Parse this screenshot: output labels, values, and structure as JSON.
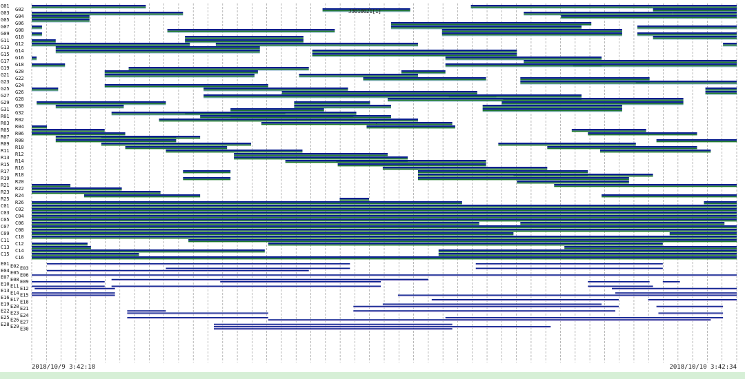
{
  "chart_data": {
    "type": "gantt",
    "start_label": "2018/10/9 3:42:18",
    "end_label": "2018/10/10 3:42:34",
    "start_clock": "03:42",
    "grid": true,
    "grid_interval_minutes": 30,
    "marker_label": "J3010021[1]",
    "colors": {
      "primary": "#0a1f8f",
      "secondary": "#1e7a2a",
      "tertiary": "#8fb3d9",
      "lavender": "#c9b8e0",
      "footer": "#d6efd6"
    },
    "groups": [
      {
        "name": "G",
        "rows": [
          {
            "label": "G01",
            "segs": [
              "03:42-07:35",
              "18:39-00:51",
              "00:51-03:42"
            ]
          },
          {
            "label": "G02",
            "segs": [
              "13:36-16:35",
              "00:51-03:42"
            ]
          },
          {
            "label": "G03",
            "segs": [
              "03:42-08:51",
              "20:27-01:32",
              "01:32-03:42"
            ]
          },
          {
            "label": "G04",
            "segs": [
              "03:42-05:40",
              "21:43-03:42"
            ]
          },
          {
            "label": "G05",
            "segs": [
              "03:42-05:40"
            ]
          },
          {
            "label": "G06",
            "segs": [
              "15:56-22:45"
            ]
          },
          {
            "label": "G07",
            "segs": [
              "03:42-04:03",
              "15:56-22:25",
              "00:19-03:42"
            ]
          },
          {
            "label": "G08",
            "segs": [
              "08:19-14:01",
              "17:40-23:48"
            ]
          },
          {
            "label": "G09",
            "segs": [
              "03:42-04:03",
              "17:40-23:48",
              "00:19-03:42"
            ]
          },
          {
            "label": "G10",
            "segs": [
              "08:55-12:57",
              "00:51-03:42"
            ]
          },
          {
            "label": "G11",
            "segs": [
              "03:42-04:31",
              "08:55-12:57"
            ]
          },
          {
            "label": "G12",
            "segs": [
              "03:42-09:05",
              "09:58-16:51",
              "03:14-03:42"
            ]
          },
          {
            "label": "G13",
            "segs": [
              "04:31-11:28"
            ]
          },
          {
            "label": "G14",
            "segs": [
              "04:31-11:28",
              "13:15-20:13"
            ]
          },
          {
            "label": "G15",
            "segs": [
              "13:15-20:13"
            ]
          },
          {
            "label": "G16",
            "segs": [
              "03:42-03:52",
              "17:47-23:06"
            ]
          },
          {
            "label": "G17",
            "segs": [
              "20:27-03:42"
            ]
          },
          {
            "label": "G18",
            "segs": [
              "03:42-04:50",
              "17:47-23:06",
              "22:08-03:42"
            ]
          },
          {
            "label": "G19",
            "segs": [
              "07:00-13:08"
            ]
          },
          {
            "label": "G20",
            "segs": [
              "06:11-11:24",
              "16:17-17:47"
            ]
          },
          {
            "label": "G21",
            "segs": [
              "06:11-11:17",
              "12:48-16:51"
            ]
          },
          {
            "label": "G22",
            "segs": [
              "14:59-19:10",
              "20:20-00:44"
            ]
          },
          {
            "label": "G23",
            "segs": [
              "20:20-00:44",
              "00:16-03:42"
            ]
          },
          {
            "label": "G24",
            "segs": [
              "06:11-11:45"
            ]
          },
          {
            "label": "G25",
            "segs": [
              "03:42-04:36",
              "09:33-14:28",
              "02:38-03:42"
            ]
          },
          {
            "label": "G26",
            "segs": [
              "12:13-18:52",
              "02:38-03:42"
            ]
          },
          {
            "label": "G27",
            "segs": [
              "09:33-19:31",
              "17:54-22:25"
            ]
          },
          {
            "label": "G28",
            "segs": [
              "15:49-22:25",
              "19:45-01:53"
            ]
          },
          {
            "label": "G29",
            "segs": [
              "03:52-08:16",
              "12:38-15:13",
              "19:42-01:53"
            ]
          },
          {
            "label": "G30",
            "segs": [
              "04:31-06:50",
              "12:38-15:56",
              "19:03-23:48"
            ]
          },
          {
            "label": "G31",
            "segs": [
              "10:28-13:39",
              "19:03-23:48"
            ]
          },
          {
            "label": "G32",
            "segs": [
              "06:25-12:20",
              "08:55-14:45"
            ]
          }
        ]
      },
      {
        "name": "R",
        "rows": [
          {
            "label": "R01",
            "segs": [
              "09:26-14:39",
              "10:28-15:56"
            ]
          },
          {
            "label": "R02",
            "segs": [
              "08:02-16:51"
            ]
          },
          {
            "label": "R03",
            "segs": [
              "11:31-15:27",
              "15:25-18:01"
            ]
          },
          {
            "label": "R04",
            "segs": [
              "03:42-04:13",
              "15:06-18:07"
            ]
          },
          {
            "label": "R05",
            "segs": [
              "03:42-06:11",
              "22:05-00:37"
            ]
          },
          {
            "label": "R06",
            "segs": [
              "03:42-06:53",
              "22:38-02:21"
            ]
          },
          {
            "label": "R07",
            "segs": [
              "04:31-08:37",
              "06:04-09:26"
            ]
          },
          {
            "label": "R08",
            "segs": [
              "04:31-08:37",
              "00:58-03:42"
            ]
          },
          {
            "label": "R09",
            "segs": [
              "06:04-11:10",
              "19:35-00:16"
            ]
          },
          {
            "label": "R10",
            "segs": [
              "06:53-10:21",
              "21:15-02:21"
            ]
          },
          {
            "label": "R11",
            "segs": [
              "08:16-12:55",
              "23:03-02:49"
            ]
          },
          {
            "label": "R12",
            "segs": [
              "10:35-15:49"
            ]
          },
          {
            "label": "R13",
            "segs": [
              "10:35-16:30"
            ]
          },
          {
            "label": "R14",
            "segs": [
              "12:20-16:30",
              "14:04-19:10"
            ]
          },
          {
            "label": "R15",
            "segs": [
              "14:07-19:10"
            ]
          },
          {
            "label": "R16",
            "segs": [
              "15:39-21:15"
            ]
          },
          {
            "label": "R17",
            "segs": [
              "08:51-10:28",
              "16:51-22:38"
            ]
          },
          {
            "label": "R18",
            "segs": [
              "16:51-22:38",
              "20:06-00:51"
            ]
          },
          {
            "label": "R19",
            "segs": [
              "08:51-10:28",
              "16:51-00:02"
            ]
          },
          {
            "label": "R20",
            "segs": [
              "20:13-00:02"
            ]
          },
          {
            "label": "R21",
            "segs": [
              "03:42-05:01",
              "21:29-03:42"
            ]
          },
          {
            "label": "R22",
            "segs": [
              "03:42-06:46"
            ]
          },
          {
            "label": "R23",
            "segs": [
              "03:42-08:05"
            ]
          },
          {
            "label": "R24",
            "segs": [
              "05:29-09:26",
              "23:06-03:42"
            ]
          },
          {
            "label": "R25",
            "segs": [
              "14:11-15:11"
            ]
          },
          {
            "label": "R26",
            "segs": [
              "03:42-18:21",
              "02:35-03:42"
            ]
          }
        ]
      },
      {
        "name": "C",
        "rows": [
          {
            "label": "C01",
            "segs": [
              "03:42-03:42"
            ]
          },
          {
            "label": "C02",
            "segs": [
              "03:42-03:42"
            ]
          },
          {
            "label": "C03",
            "segs": [
              "03:42-03:42"
            ]
          },
          {
            "label": "C04",
            "segs": [
              "03:42-03:42"
            ]
          },
          {
            "label": "C05",
            "segs": [
              "03:42-03:42"
            ]
          },
          {
            "label": "C06",
            "segs": [
              "03:42-18:56",
              "20:20-03:17"
            ]
          },
          {
            "label": "C07",
            "segs": [
              "03:42-03:42"
            ]
          },
          {
            "label": "C08",
            "segs": [
              "03:42-03:42"
            ]
          },
          {
            "label": "C09",
            "segs": [
              "03:42-20:06",
              "01:25-03:42"
            ]
          },
          {
            "label": "C10",
            "segs": [
              "03:42-03:42"
            ]
          },
          {
            "label": "C11",
            "segs": [
              "09:02-03:42"
            ]
          },
          {
            "label": "C12",
            "segs": [
              "03:42-05:36",
              "11:45-01:11"
            ]
          },
          {
            "label": "C13",
            "segs": [
              "03:42-05:43",
              "21:50-03:42"
            ]
          },
          {
            "label": "C14",
            "segs": [
              "03:42-11:38",
              "17:33-03:42"
            ]
          },
          {
            "label": "C15",
            "segs": [
              "03:42-07:21",
              "17:33-03:42"
            ]
          },
          {
            "label": "C16",
            "segs": [
              "03:42-03:42"
            ]
          }
        ]
      },
      {
        "name": "E",
        "rows": [
          {
            "label": "E01",
            "segs": [
              "04:13-14:32",
              "18:49-01:11"
            ]
          },
          {
            "label": "E02",
            "segs": []
          },
          {
            "label": "E03",
            "segs": [
              "08:16-14:32",
              "18:49-01:11"
            ]
          },
          {
            "label": "E04",
            "segs": [
              "04:13-09:40",
              "09:40-13:08"
            ]
          },
          {
            "label": "E05",
            "segs": []
          },
          {
            "label": "E06",
            "segs": [
              "03:42-03:42"
            ]
          },
          {
            "label": "E07",
            "segs": []
          },
          {
            "label": "E08",
            "segs": [
              "06:25-17:12",
              "10:07-17:12"
            ]
          },
          {
            "label": "E09",
            "segs": [
              "03:42-06:11",
              "10:07-15:35",
              "22:38-00:44",
              "01:11-01:46"
            ]
          },
          {
            "label": "E10",
            "segs": []
          },
          {
            "label": "E11",
            "segs": [
              "03:42-06:11",
              "06:25-15:35",
              "22:38-00:51"
            ]
          },
          {
            "label": "E12",
            "segs": [
              "03:48-06:32",
              "23:27-03:42"
            ]
          },
          {
            "label": "E13",
            "segs": []
          },
          {
            "label": "E14",
            "segs": [
              "03:42-06:32",
              "23:34-03:42"
            ]
          },
          {
            "label": "E15",
            "segs": [
              "03:42-06:32",
              "16:10-03:42"
            ]
          },
          {
            "label": "E16",
            "segs": []
          },
          {
            "label": "E17",
            "segs": [
              "17:19-23:41",
              "00:41-03:42"
            ]
          },
          {
            "label": "E18",
            "segs": []
          },
          {
            "label": "E19",
            "segs": [
              "15:39-23:06"
            ]
          },
          {
            "label": "E20",
            "segs": [
              "14:39-23:41",
              "00:58-03:14"
            ]
          },
          {
            "label": "E21",
            "segs": []
          },
          {
            "label": "E22",
            "segs": [
              "06:57-08:16",
              "14:39-23:34"
            ]
          },
          {
            "label": "E23",
            "segs": [
              "06:57-11:45",
              "01:02-03:14"
            ]
          },
          {
            "label": "E24",
            "segs": []
          },
          {
            "label": "E25",
            "segs": [
              "06:57-11:45",
              "17:47-03:14"
            ]
          },
          {
            "label": "E26",
            "segs": [
              "11:45-02:49"
            ]
          },
          {
            "label": "E27",
            "segs": []
          },
          {
            "label": "E28",
            "segs": [
              "09:54-18:01"
            ]
          },
          {
            "label": "E29",
            "segs": [
              "09:54-21:22"
            ]
          },
          {
            "label": "E30",
            "segs": [
              "09:54-18:01"
            ]
          }
        ]
      }
    ]
  }
}
